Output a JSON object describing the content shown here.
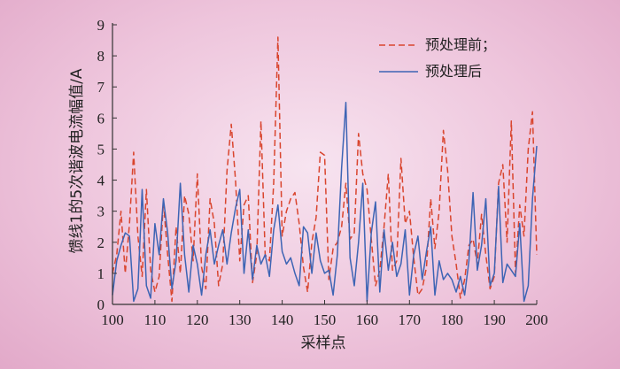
{
  "chart_data": {
    "type": "line",
    "xlabel": "采样点",
    "ylabel": "馈线1的5次谐波电流幅值/A",
    "xlim": [
      100,
      200
    ],
    "ylim": [
      0,
      9
    ],
    "xticks": [
      100,
      110,
      120,
      130,
      140,
      150,
      160,
      170,
      180,
      190,
      200
    ],
    "yticks": [
      0,
      1,
      2,
      3,
      4,
      5,
      6,
      7,
      8,
      9
    ],
    "grid": false,
    "legend_position": "top-right",
    "series": [
      {
        "name": "预处理前；",
        "style": "dashed",
        "color": "#d9452e",
        "x": [
          100,
          101,
          102,
          103,
          104,
          105,
          106,
          107,
          108,
          109,
          110,
          111,
          112,
          113,
          114,
          115,
          116,
          117,
          118,
          119,
          120,
          121,
          122,
          123,
          124,
          125,
          126,
          127,
          128,
          129,
          130,
          131,
          132,
          133,
          134,
          135,
          136,
          137,
          138,
          139,
          140,
          141,
          142,
          143,
          144,
          145,
          146,
          147,
          148,
          149,
          150,
          151,
          152,
          153,
          154,
          155,
          156,
          157,
          158,
          159,
          160,
          161,
          162,
          163,
          164,
          165,
          166,
          167,
          168,
          169,
          170,
          171,
          172,
          173,
          174,
          175,
          176,
          177,
          178,
          179,
          180,
          181,
          182,
          183,
          184,
          185,
          186,
          187,
          188,
          189,
          190,
          191,
          192,
          193,
          194,
          195,
          196,
          197,
          198,
          199,
          200
        ],
        "y": [
          1.0,
          1.6,
          3.0,
          1.0,
          2.6,
          4.9,
          2.2,
          0.9,
          3.7,
          1.1,
          0.4,
          0.9,
          3.3,
          1.6,
          0.1,
          2.5,
          1.0,
          3.5,
          2.9,
          1.4,
          4.2,
          1.2,
          0.5,
          3.4,
          2.6,
          0.6,
          1.3,
          4.3,
          5.8,
          4.0,
          1.4,
          3.2,
          3.5,
          0.7,
          1.6,
          5.9,
          1.6,
          1.4,
          3.9,
          8.6,
          2.2,
          3.0,
          3.4,
          3.6,
          2.6,
          1.2,
          0.4,
          2.0,
          2.8,
          4.9,
          4.8,
          0.8,
          1.8,
          2.0,
          2.5,
          3.9,
          2.1,
          2.3,
          5.5,
          4.2,
          3.7,
          2.1,
          0.6,
          1.1,
          2.5,
          4.2,
          1.1,
          1.4,
          4.7,
          2.6,
          3.0,
          1.5,
          0.3,
          0.5,
          1.2,
          3.4,
          1.8,
          3.0,
          5.6,
          4.3,
          2.2,
          1.3,
          0.2,
          0.8,
          1.9,
          2.1,
          1.3,
          2.9,
          1.6,
          0.5,
          0.9,
          3.9,
          4.5,
          2.0,
          5.9,
          1.0,
          3.2,
          2.2,
          5.0,
          6.2,
          1.6
        ]
      },
      {
        "name": "预处理后",
        "style": "solid",
        "color": "#3d64b4",
        "x": [
          100,
          101,
          102,
          103,
          104,
          105,
          106,
          107,
          108,
          109,
          110,
          111,
          112,
          113,
          114,
          115,
          116,
          117,
          118,
          119,
          120,
          121,
          122,
          123,
          124,
          125,
          126,
          127,
          128,
          129,
          130,
          131,
          132,
          133,
          134,
          135,
          136,
          137,
          138,
          139,
          140,
          141,
          142,
          143,
          144,
          145,
          146,
          147,
          148,
          149,
          150,
          151,
          152,
          153,
          154,
          155,
          156,
          157,
          158,
          159,
          160,
          161,
          162,
          163,
          164,
          165,
          166,
          167,
          168,
          169,
          170,
          171,
          172,
          173,
          174,
          175,
          176,
          177,
          178,
          179,
          180,
          181,
          182,
          183,
          184,
          185,
          186,
          187,
          188,
          189,
          190,
          191,
          192,
          193,
          194,
          195,
          196,
          197,
          198,
          199,
          200
        ],
        "y": [
          0.3,
          1.4,
          1.9,
          2.3,
          2.2,
          0.1,
          0.5,
          3.7,
          0.6,
          0.2,
          2.6,
          1.6,
          3.4,
          2.3,
          0.5,
          1.4,
          3.9,
          1.6,
          0.4,
          1.9,
          1.3,
          0.3,
          1.6,
          2.4,
          1.3,
          1.9,
          2.4,
          1.3,
          2.3,
          3.1,
          3.7,
          1.0,
          2.4,
          0.8,
          1.9,
          1.3,
          1.6,
          0.9,
          2.4,
          3.2,
          1.7,
          1.3,
          1.5,
          1.0,
          0.6,
          2.5,
          2.3,
          1.0,
          2.3,
          1.4,
          1.0,
          1.1,
          0.3,
          1.6,
          4.4,
          6.5,
          1.5,
          0.6,
          2.0,
          3.9,
          0.1,
          2.3,
          3.3,
          0.4,
          2.4,
          1.1,
          2.0,
          0.9,
          1.3,
          2.4,
          0.3,
          1.6,
          2.2,
          0.8,
          1.7,
          2.5,
          0.3,
          1.4,
          0.8,
          1.0,
          0.8,
          0.4,
          0.9,
          0.3,
          1.4,
          3.6,
          1.1,
          1.9,
          3.4,
          0.6,
          1.0,
          3.8,
          0.7,
          1.3,
          1.1,
          0.9,
          2.6,
          0.1,
          0.6,
          3.4,
          5.1
        ]
      }
    ]
  }
}
